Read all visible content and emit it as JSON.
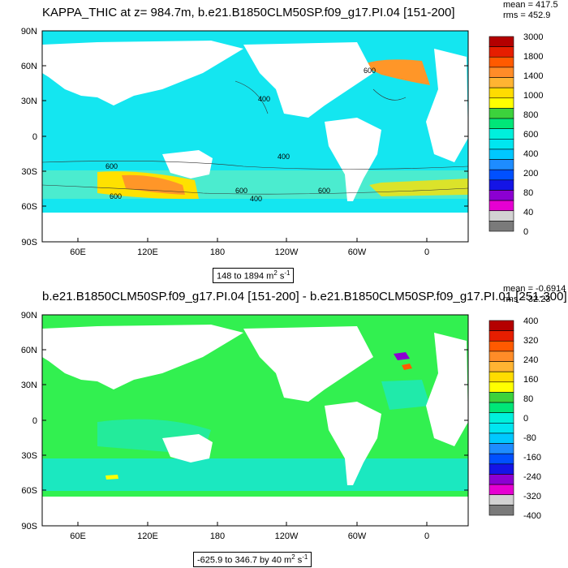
{
  "maps": [
    {
      "title": "KAPPA_THIC at z= 984.7m, b.e21.B1850CLM50SP.f09_g17.PI.04 [151-200]",
      "stats": {
        "mean": "mean = 417.5",
        "rms": "rms = 452.9"
      },
      "range_text": "148 to 1894 m",
      "range_unit_sup": "2",
      "range_suffix": " s",
      "range_suffix_sup": "-1",
      "lat_ticks": [
        "90N",
        "60N",
        "30N",
        "0",
        "30S",
        "60S",
        "90S"
      ],
      "lon_ticks": [
        "60E",
        "120E",
        "180",
        "120W",
        "60W",
        "0"
      ],
      "contour_labels": [
        "400",
        "600",
        "400",
        "600",
        "400",
        "600",
        "600",
        "600"
      ],
      "colorbar": {
        "labels": [
          "3000",
          "1800",
          "1400",
          "1000",
          "800",
          "600",
          "400",
          "200",
          "80",
          "40",
          "0"
        ],
        "colors": [
          "#b40000",
          "#e61e00",
          "#ff5a00",
          "#ff8c28",
          "#ffb432",
          "#ffdc00",
          "#ffff00",
          "#3cd23c",
          "#00e678",
          "#00f0dc",
          "#00e6f0",
          "#00c8ff",
          "#1e8cff",
          "#0050ff",
          "#1414e6",
          "#8c00d2",
          "#e600d2",
          "#d2d2d2",
          "#7a7a7a"
        ]
      },
      "fill": {
        "ocean": "#14e6f0",
        "band": "#78f0b4",
        "hot": "#ffe100",
        "hotter": "#ff9628"
      }
    },
    {
      "title": "b.e21.B1850CLM50SP.f09_g17.PI.04 [151-200] - b.e21.B1850CLM50SP.f09_g17.PI.01 [251-300]",
      "stats": {
        "mean": "mean = -0.6914",
        "rms": "rms = 32.23"
      },
      "range_text": "-625.9 to 346.7 by 40 m",
      "range_unit_sup": "2",
      "range_suffix": " s",
      "range_suffix_sup": "-1",
      "lat_ticks": [
        "90N",
        "60N",
        "30N",
        "0",
        "30S",
        "60S",
        "90S"
      ],
      "lon_ticks": [
        "60E",
        "120E",
        "180",
        "120W",
        "60W",
        "0"
      ],
      "colorbar": {
        "labels": [
          "400",
          "320",
          "240",
          "160",
          "80",
          "0",
          "-80",
          "-160",
          "-240",
          "-320",
          "-400"
        ],
        "colors": [
          "#b40000",
          "#e61e00",
          "#ff5a00",
          "#ff8c28",
          "#ffb432",
          "#ffdc00",
          "#ffff00",
          "#3cd23c",
          "#00e678",
          "#00f0dc",
          "#00e6f0",
          "#00c8ff",
          "#1e8cff",
          "#0050ff",
          "#1414e6",
          "#8c00d2",
          "#e600d2",
          "#d2d2d2",
          "#7a7a7a"
        ]
      },
      "fill": {
        "ocean": "#32f050",
        "band": "#14e6e6",
        "hot": "#ffff00",
        "hotter": "#ff5a00"
      }
    }
  ]
}
